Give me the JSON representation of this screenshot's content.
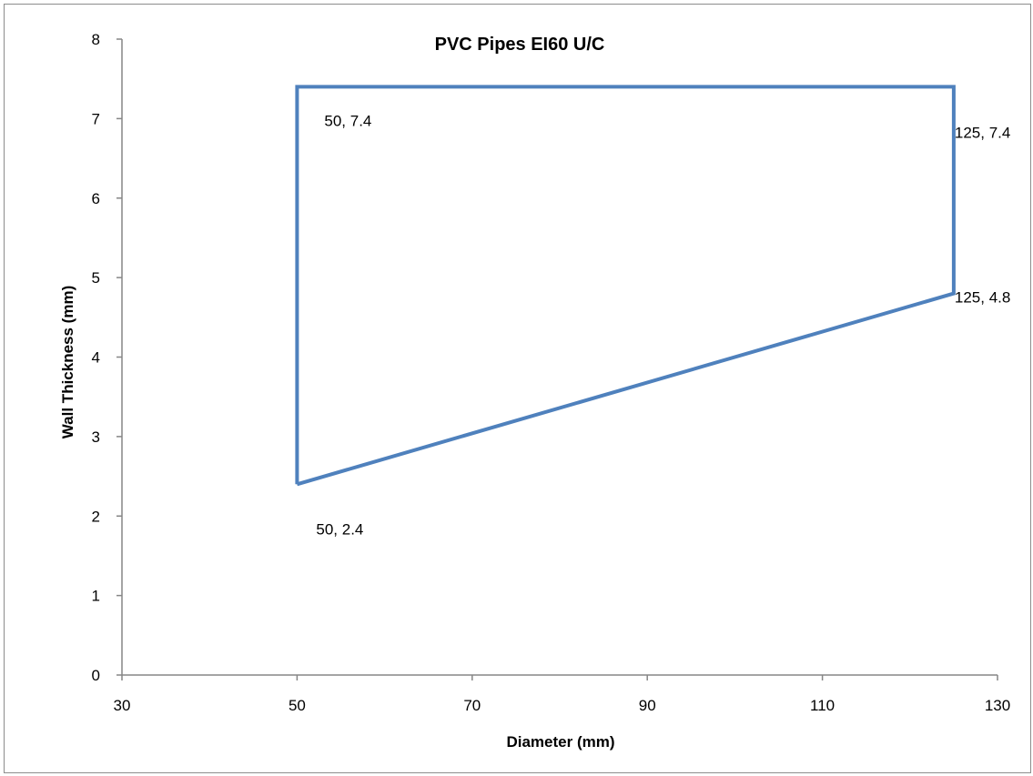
{
  "chart_data": {
    "type": "line",
    "title": "PVC Pipes EI60 U/C",
    "xlabel": "Diameter (mm)",
    "ylabel": "Wall Thickness (mm)",
    "xlim": [
      30,
      130
    ],
    "ylim": [
      0,
      8
    ],
    "x_ticks": [
      30,
      50,
      70,
      90,
      110,
      130
    ],
    "y_ticks": [
      0,
      1,
      2,
      3,
      4,
      5,
      6,
      7,
      8
    ],
    "grid": false,
    "legend": "none",
    "series": [
      {
        "color": "#4f81bd",
        "points": [
          {
            "x": 50,
            "y": 2.4,
            "label": "50, 2.4"
          },
          {
            "x": 50,
            "y": 7.4,
            "label": "50, 7.4"
          },
          {
            "x": 125,
            "y": 7.4,
            "label": "125, 7.4"
          },
          {
            "x": 125,
            "y": 4.8,
            "label": "125, 4.8"
          },
          {
            "x": 50,
            "y": 2.4
          }
        ]
      }
    ]
  }
}
